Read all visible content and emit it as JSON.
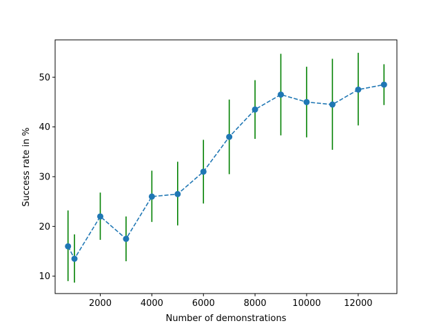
{
  "chart_data": {
    "type": "line",
    "xlabel": "Number of demonstrations",
    "ylabel": "Success rate in %",
    "xlim": [
      250,
      13500
    ],
    "ylim": [
      6.5,
      57.5
    ],
    "x_ticks": [
      2000,
      4000,
      6000,
      8000,
      10000,
      12000
    ],
    "y_ticks": [
      10,
      20,
      30,
      40,
      50
    ],
    "grid": false,
    "series": [
      {
        "x": [
          750,
          1000,
          2000,
          3000,
          4000,
          5000,
          6000,
          7000,
          8000,
          9000,
          10000,
          11000,
          12000,
          13000
        ],
        "y": [
          16.0,
          13.5,
          22.0,
          17.5,
          26.0,
          26.5,
          31.0,
          38.0,
          43.5,
          46.5,
          45.0,
          44.5,
          47.5,
          48.5
        ],
        "err_low": [
          9.0,
          8.7,
          17.3,
          13.0,
          20.9,
          20.2,
          24.6,
          30.5,
          37.6,
          38.3,
          37.9,
          35.4,
          40.3,
          44.4
        ],
        "err_high": [
          23.2,
          18.4,
          26.8,
          22.0,
          31.2,
          33.0,
          37.4,
          45.5,
          49.4,
          54.7,
          52.1,
          53.7,
          54.9,
          52.6
        ],
        "line_color": "#1f77b4",
        "errorbar_color": "#008000",
        "line_style": "dashed",
        "marker": "circle"
      }
    ]
  }
}
